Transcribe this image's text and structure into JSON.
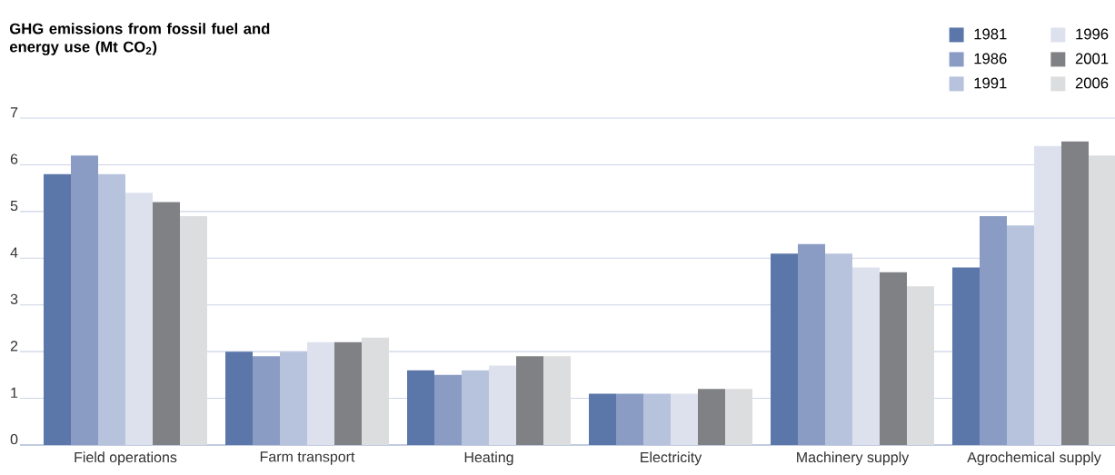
{
  "chart_data": {
    "type": "bar",
    "title": "GHG emissions from fossil fuel and energy use (Mt CO$_{2}$)",
    "categories": [
      "Field operations",
      "Farm transport",
      "Heating",
      "Electricity",
      "Machinery supply",
      "Agrochemical supply"
    ],
    "series": [
      {
        "name": "1981",
        "color": "#5b76a8",
        "values": [
          5.8,
          2.0,
          1.6,
          1.1,
          4.1,
          3.8
        ]
      },
      {
        "name": "1986",
        "color": "#8a9cc4",
        "values": [
          6.2,
          1.9,
          1.5,
          1.1,
          4.3,
          4.9
        ]
      },
      {
        "name": "1991",
        "color": "#b7c2dc",
        "values": [
          5.8,
          2.0,
          1.6,
          1.1,
          4.1,
          4.7
        ]
      },
      {
        "name": "1996",
        "color": "#dde1ee",
        "values": [
          5.4,
          2.2,
          1.7,
          1.1,
          3.8,
          6.4
        ]
      },
      {
        "name": "2001",
        "color": "#808185",
        "values": [
          5.2,
          2.2,
          1.9,
          1.2,
          3.7,
          6.5
        ]
      },
      {
        "name": "2006",
        "color": "#dcddde",
        "values": [
          4.9,
          2.3,
          1.9,
          1.2,
          3.4,
          6.2
        ]
      }
    ],
    "ylim": [
      0,
      7
    ],
    "yticks": [
      0,
      1,
      2,
      3,
      4,
      5,
      6,
      7
    ],
    "grid": "y",
    "legend": "top right"
  }
}
